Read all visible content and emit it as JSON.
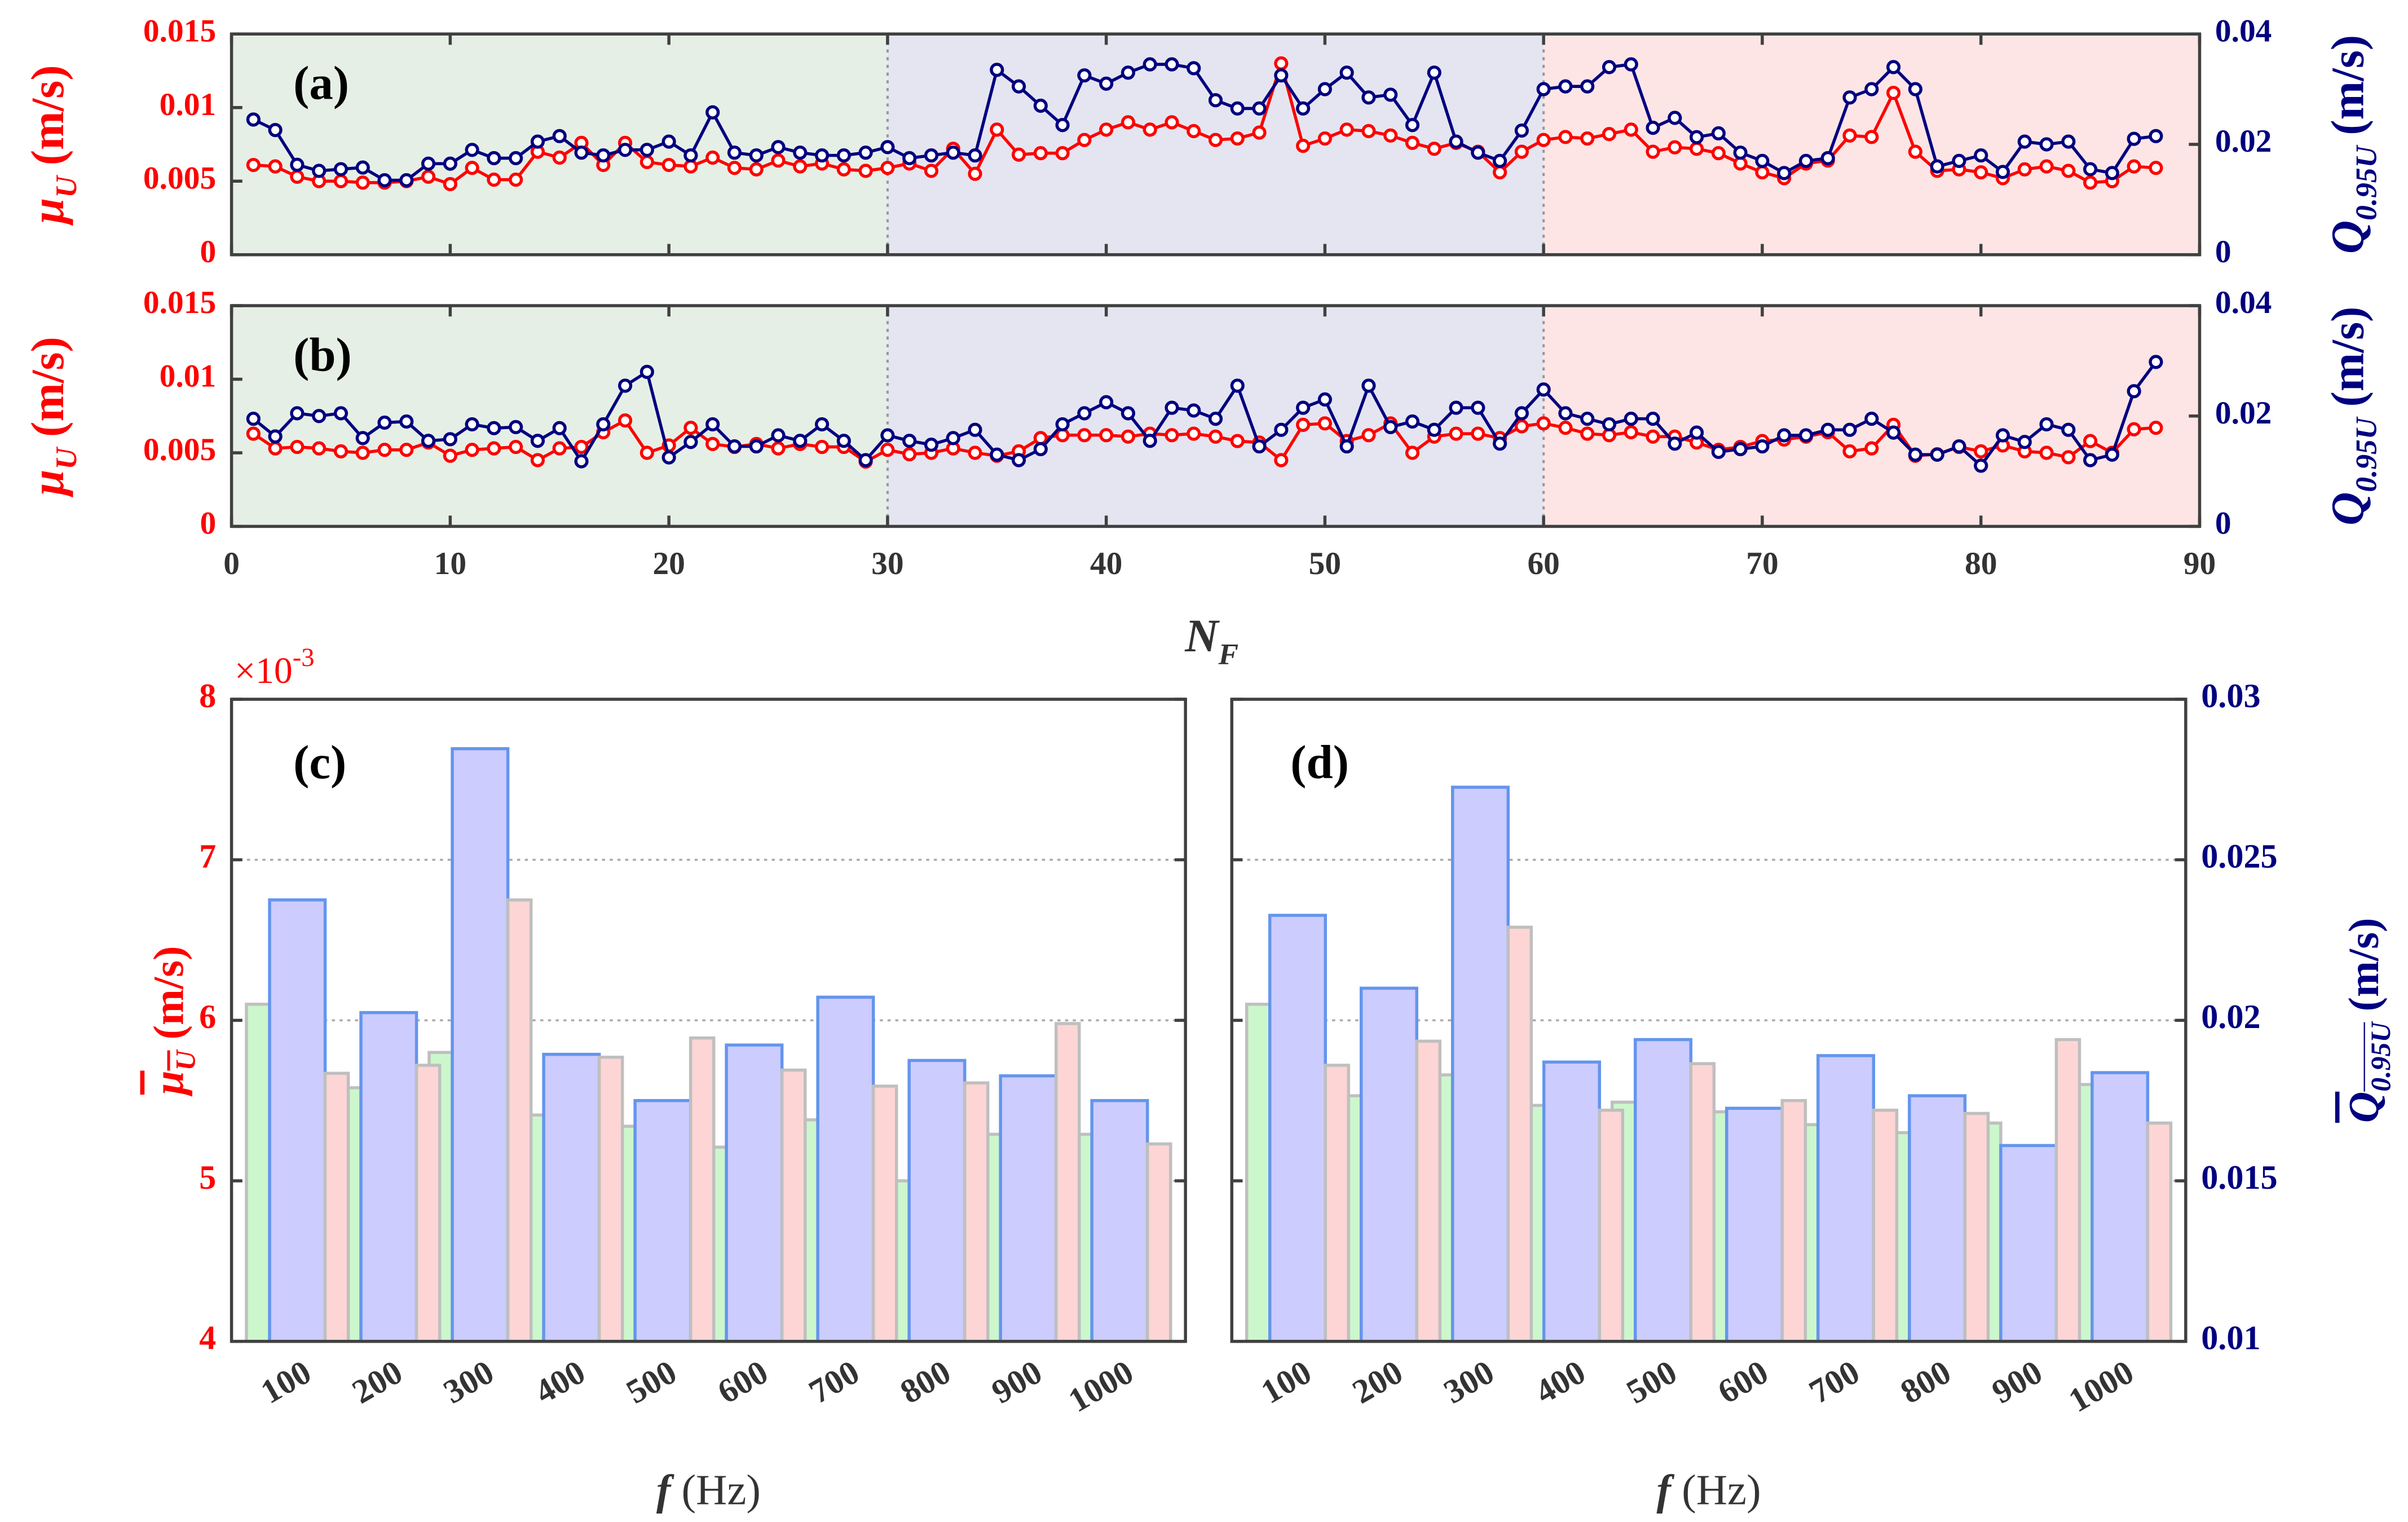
{
  "chart_data": [
    {
      "type": "line",
      "panel_label": "(a)",
      "x": [
        1,
        2,
        3,
        4,
        5,
        6,
        7,
        8,
        9,
        10,
        11,
        12,
        13,
        14,
        15,
        16,
        17,
        18,
        19,
        20,
        21,
        22,
        23,
        24,
        25,
        26,
        27,
        28,
        29,
        30,
        31,
        32,
        33,
        34,
        35,
        36,
        37,
        38,
        39,
        40,
        41,
        42,
        43,
        44,
        45,
        46,
        47,
        48,
        49,
        50,
        51,
        52,
        53,
        54,
        55,
        56,
        57,
        58,
        59,
        60,
        61,
        62,
        63,
        64,
        65,
        66,
        67,
        68,
        69,
        70,
        71,
        72,
        73,
        74,
        75,
        76,
        77,
        78,
        79,
        80,
        81,
        82,
        83,
        84,
        85,
        86,
        87,
        88
      ],
      "xlim": [
        0,
        90
      ],
      "xticks": [
        0,
        10,
        20,
        30,
        40,
        50,
        60,
        70,
        80,
        90
      ],
      "xticklabels": false,
      "ylim": [
        0,
        0.015
      ],
      "yticks": [
        0,
        0.005,
        0.01,
        0.015
      ],
      "y2lim": [
        0,
        0.04
      ],
      "y2ticks": [
        0,
        0.02,
        0.04
      ],
      "y_label": {
        "symbol": "μ",
        "subscript": "U",
        "unit": "(m/s)",
        "color": "#ff0000"
      },
      "y2_label": {
        "symbol": "Q",
        "subscript": "0.95U",
        "unit": "(m/s)",
        "color": "#000080"
      },
      "regions": [
        {
          "from": 0,
          "to": 30,
          "color": "#e6efe6"
        },
        {
          "from": 30,
          "to": 60,
          "color": "#e5e5f1"
        },
        {
          "from": 60,
          "to": 90,
          "color": "#fde5e5"
        }
      ],
      "series": [
        {
          "color": "#ff0000",
          "axis": "y",
          "values": [
            0.0061,
            0.006,
            0.0053,
            0.005,
            0.005,
            0.0049,
            0.0049,
            0.005,
            0.0053,
            0.0048,
            0.0059,
            0.0051,
            0.0051,
            0.007,
            0.0066,
            0.0076,
            0.0061,
            0.0076,
            0.0063,
            0.0061,
            0.006,
            0.0066,
            0.0059,
            0.0058,
            0.0064,
            0.006,
            0.0062,
            0.0058,
            0.0057,
            0.0059,
            0.0062,
            0.0057,
            0.0072,
            0.0055,
            0.0085,
            0.0068,
            0.0069,
            0.0069,
            0.0078,
            0.0085,
            0.009,
            0.0085,
            0.009,
            0.0084,
            0.0078,
            0.0079,
            0.0083,
            0.013,
            0.0074,
            0.0079,
            0.0085,
            0.0084,
            0.0081,
            0.0076,
            0.0072,
            0.0076,
            0.007,
            0.0056,
            0.007,
            0.0078,
            0.008,
            0.0079,
            0.0082,
            0.0085,
            0.007,
            0.0073,
            0.0072,
            0.0069,
            0.0062,
            0.0056,
            0.0052,
            0.0062,
            0.0064,
            0.0081,
            0.008,
            0.011,
            0.007,
            0.0057,
            0.0058,
            0.0056,
            0.0052,
            0.0058,
            0.006,
            0.0057,
            0.0049,
            0.005,
            0.006,
            0.0059
          ]
        },
        {
          "color": "#000080",
          "axis": "y2",
          "values": [
            0.0245,
            0.0226,
            0.0163,
            0.0152,
            0.0155,
            0.0158,
            0.0135,
            0.0135,
            0.0165,
            0.0165,
            0.019,
            0.0175,
            0.0175,
            0.0205,
            0.0215,
            0.0185,
            0.018,
            0.019,
            0.019,
            0.0205,
            0.018,
            0.0258,
            0.0185,
            0.018,
            0.0195,
            0.0185,
            0.018,
            0.018,
            0.0185,
            0.0195,
            0.0175,
            0.018,
            0.0185,
            0.018,
            0.0335,
            0.0305,
            0.027,
            0.0235,
            0.0325,
            0.031,
            0.033,
            0.0345,
            0.0345,
            0.0338,
            0.028,
            0.0265,
            0.0265,
            0.0325,
            0.0265,
            0.03,
            0.033,
            0.0285,
            0.029,
            0.0235,
            0.033,
            0.0205,
            0.0185,
            0.017,
            0.0225,
            0.03,
            0.0305,
            0.0305,
            0.034,
            0.0345,
            0.023,
            0.0248,
            0.0213,
            0.022,
            0.0185,
            0.017,
            0.0148,
            0.017,
            0.0175,
            0.0285,
            0.03,
            0.034,
            0.03,
            0.016,
            0.017,
            0.018,
            0.015,
            0.0205,
            0.02,
            0.0205,
            0.0155,
            0.0148,
            0.021,
            0.0215
          ]
        }
      ]
    },
    {
      "type": "line",
      "panel_label": "(b)",
      "x": [
        1,
        2,
        3,
        4,
        5,
        6,
        7,
        8,
        9,
        10,
        11,
        12,
        13,
        14,
        15,
        16,
        17,
        18,
        19,
        20,
        21,
        22,
        23,
        24,
        25,
        26,
        27,
        28,
        29,
        30,
        31,
        32,
        33,
        34,
        35,
        36,
        37,
        38,
        39,
        40,
        41,
        42,
        43,
        44,
        45,
        46,
        47,
        48,
        49,
        50,
        51,
        52,
        53,
        54,
        55,
        56,
        57,
        58,
        59,
        60,
        61,
        62,
        63,
        64,
        65,
        66,
        67,
        68,
        69,
        70,
        71,
        72,
        73,
        74,
        75,
        76,
        77,
        78,
        79,
        80,
        81,
        82,
        83,
        84,
        85,
        86,
        87,
        88
      ],
      "xlim": [
        0,
        90
      ],
      "xticks": [
        0,
        10,
        20,
        30,
        40,
        50,
        60,
        70,
        80,
        90
      ],
      "x_label": {
        "symbol": "N",
        "subscript": "F"
      },
      "ylim": [
        0,
        0.015
      ],
      "yticks": [
        0,
        0.005,
        0.01,
        0.015
      ],
      "y2lim": [
        0,
        0.04
      ],
      "y2ticks": [
        0,
        0.02,
        0.04
      ],
      "y_label": {
        "symbol": "μ",
        "subscript": "U",
        "unit": "(m/s)",
        "color": "#ff0000"
      },
      "y2_label": {
        "symbol": "Q",
        "subscript": "0.95U",
        "unit": "(m/s)",
        "color": "#000080"
      },
      "regions": [
        {
          "from": 0,
          "to": 30,
          "color": "#e6efe6"
        },
        {
          "from": 30,
          "to": 60,
          "color": "#e5e5f1"
        },
        {
          "from": 60,
          "to": 90,
          "color": "#fde5e5"
        }
      ],
      "series": [
        {
          "color": "#ff0000",
          "axis": "y",
          "values": [
            0.0063,
            0.0053,
            0.0054,
            0.0053,
            0.0051,
            0.005,
            0.0052,
            0.0052,
            0.0057,
            0.0048,
            0.0052,
            0.0053,
            0.0054,
            0.0045,
            0.0053,
            0.0054,
            0.0064,
            0.0072,
            0.005,
            0.0055,
            0.0067,
            0.0056,
            0.0054,
            0.0056,
            0.0053,
            0.0056,
            0.0054,
            0.0054,
            0.0044,
            0.0052,
            0.0049,
            0.005,
            0.0053,
            0.005,
            0.0048,
            0.0051,
            0.006,
            0.0062,
            0.0062,
            0.0062,
            0.0061,
            0.0063,
            0.0062,
            0.0063,
            0.0061,
            0.0058,
            0.0057,
            0.0045,
            0.0069,
            0.007,
            0.0058,
            0.0062,
            0.007,
            0.005,
            0.0061,
            0.0063,
            0.0063,
            0.006,
            0.0068,
            0.007,
            0.0067,
            0.0063,
            0.0062,
            0.0064,
            0.0061,
            0.0061,
            0.0057,
            0.0052,
            0.0054,
            0.0058,
            0.0059,
            0.0061,
            0.0064,
            0.0051,
            0.0053,
            0.0069,
            0.0048,
            0.0049,
            0.0054,
            0.0051,
            0.0055,
            0.0051,
            0.005,
            0.0047,
            0.0058,
            0.005,
            0.0066,
            0.0067
          ]
        },
        {
          "color": "#000080",
          "axis": "y2",
          "values": [
            0.0195,
            0.0163,
            0.0205,
            0.02,
            0.0205,
            0.016,
            0.0188,
            0.019,
            0.0155,
            0.0158,
            0.0185,
            0.0178,
            0.018,
            0.0155,
            0.0178,
            0.0118,
            0.0185,
            0.0255,
            0.028,
            0.0125,
            0.0153,
            0.0185,
            0.0145,
            0.0145,
            0.0165,
            0.0155,
            0.0185,
            0.0155,
            0.012,
            0.0165,
            0.0155,
            0.0148,
            0.016,
            0.0175,
            0.013,
            0.012,
            0.014,
            0.0185,
            0.0205,
            0.0225,
            0.0205,
            0.0155,
            0.0215,
            0.021,
            0.0195,
            0.0255,
            0.0145,
            0.0175,
            0.0215,
            0.023,
            0.0145,
            0.0255,
            0.018,
            0.019,
            0.0175,
            0.0215,
            0.0215,
            0.015,
            0.0205,
            0.0248,
            0.0205,
            0.0195,
            0.0185,
            0.0195,
            0.0195,
            0.015,
            0.017,
            0.0135,
            0.014,
            0.0145,
            0.0165,
            0.0165,
            0.0175,
            0.0175,
            0.0195,
            0.017,
            0.013,
            0.013,
            0.0145,
            0.011,
            0.0165,
            0.0153,
            0.0185,
            0.0175,
            0.012,
            0.013,
            0.0245,
            0.0298
          ]
        }
      ]
    },
    {
      "type": "bar",
      "panel_label": "(c)",
      "categories": [
        "100",
        "200",
        "300",
        "400",
        "500",
        "600",
        "700",
        "800",
        "900",
        "1000"
      ],
      "x_label": {
        "symbol": "f",
        "unit": "(Hz)"
      },
      "ylim": [
        4,
        8
      ],
      "yticks": [
        4,
        5,
        6,
        7,
        8
      ],
      "grid": true,
      "y_exponent": {
        "base": "×10",
        "power": "-3",
        "color": "#ff0000"
      },
      "y_label": {
        "symbol": "μ",
        "subscript": "U",
        "unit": "(m/s)",
        "color": "#ff0000",
        "overline": true
      },
      "y2lim": [
        0.01,
        0.03
      ],
      "series": [
        {
          "color": "#ccf7cc",
          "edgecolor": "#bfbfbf",
          "axis": "y",
          "values": [
            6.1,
            5.58,
            5.8,
            5.41,
            5.34,
            5.21,
            5.38,
            5.0,
            5.29,
            5.29
          ]
        },
        {
          "color": "#ccccff",
          "edgecolor": "#6495ed",
          "axis": "y2",
          "values": [
            0.02375,
            0.02024,
            0.02846,
            0.01894,
            0.0175,
            0.01923,
            0.02072,
            0.01875,
            0.01827,
            0.0175
          ]
        },
        {
          "color": "#fdd5d5",
          "edgecolor": "#bfbfbf",
          "axis": "y",
          "values": [
            5.67,
            5.72,
            6.75,
            5.77,
            5.89,
            5.69,
            5.59,
            5.61,
            5.98,
            5.23
          ]
        }
      ]
    },
    {
      "type": "bar",
      "panel_label": "(d)",
      "categories": [
        "100",
        "200",
        "300",
        "400",
        "500",
        "600",
        "700",
        "800",
        "900",
        "1000"
      ],
      "x_label": {
        "symbol": "f",
        "unit": "(Hz)"
      },
      "ylim": [
        4,
        8
      ],
      "y2lim": [
        0.01,
        0.03
      ],
      "y2ticks": [
        0.01,
        0.015,
        0.02,
        0.025,
        0.03
      ],
      "grid": true,
      "y2_label": {
        "symbol": "Q",
        "subscript": "0.95U",
        "unit": "(m/s)",
        "color": "#000080",
        "overline": true
      },
      "series": [
        {
          "color": "#ccf7cc",
          "edgecolor": "#bfbfbf",
          "axis": "y",
          "values": [
            6.1,
            5.53,
            5.66,
            5.47,
            5.49,
            5.43,
            5.35,
            5.3,
            5.36,
            5.6
          ]
        },
        {
          "color": "#ccccff",
          "edgecolor": "#6495ed",
          "axis": "y2",
          "values": [
            0.02327,
            0.021,
            0.02726,
            0.0187,
            0.0194,
            0.01726,
            0.0189,
            0.01765,
            0.0161,
            0.01837
          ]
        },
        {
          "color": "#fdd5d5",
          "edgecolor": "#bfbfbf",
          "axis": "y",
          "values": [
            5.72,
            5.87,
            6.58,
            5.44,
            5.73,
            5.5,
            5.44,
            5.42,
            5.88,
            5.36
          ]
        }
      ]
    }
  ]
}
